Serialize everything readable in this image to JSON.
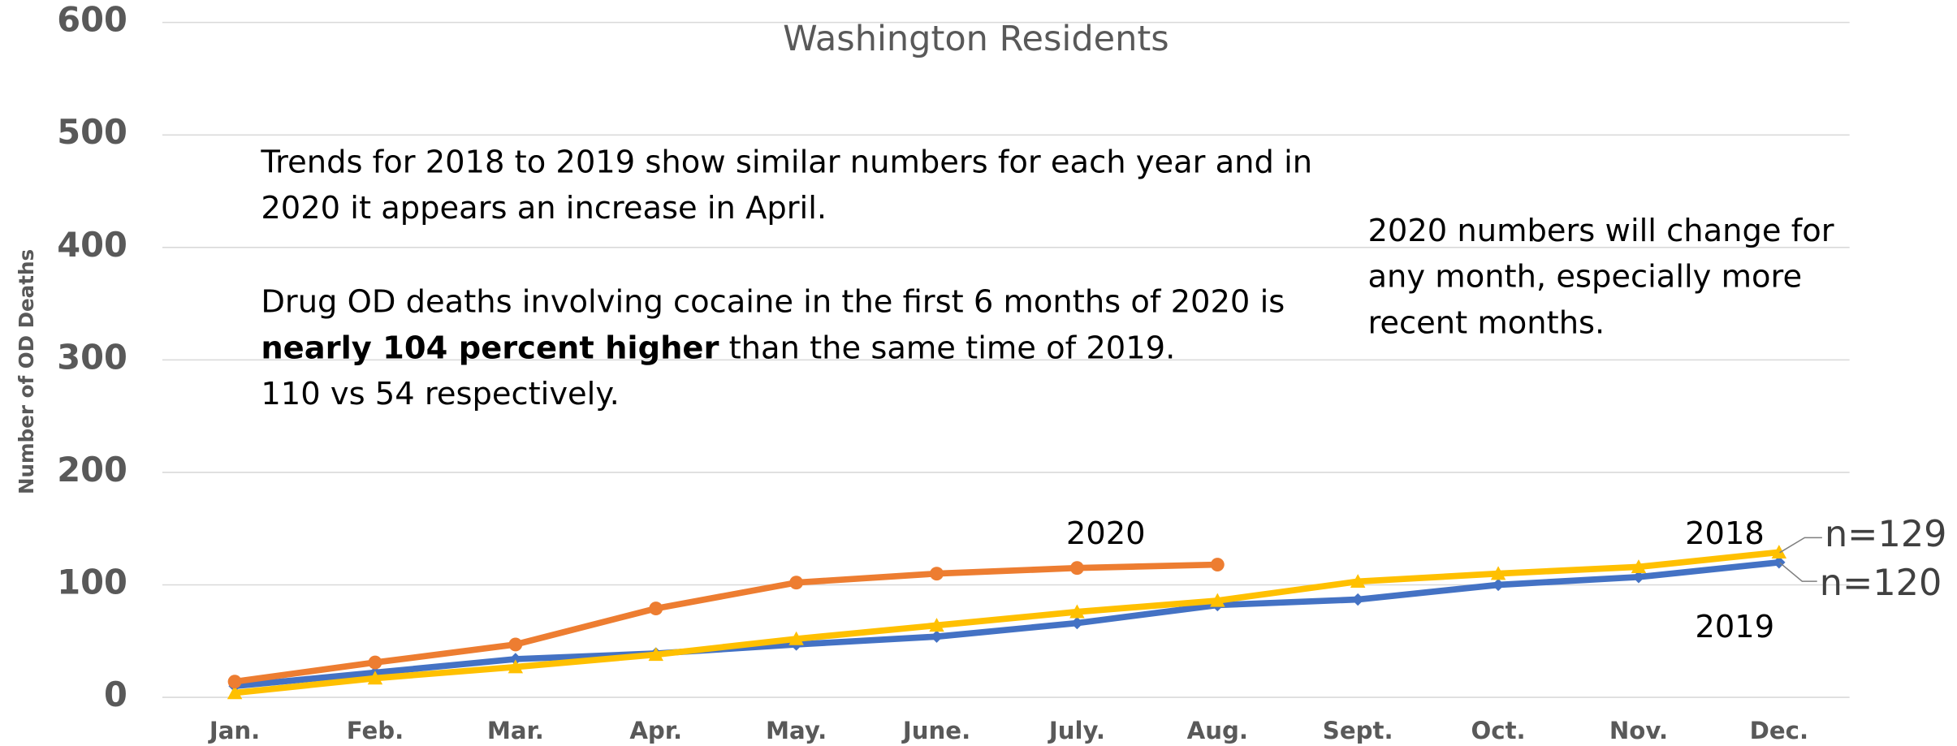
{
  "chart_data": {
    "type": "line",
    "title": "Washington Residents",
    "y_label": "Number of OD Deaths",
    "categories": [
      "Jan.",
      "Feb.",
      "Mar.",
      "Apr.",
      "May.",
      "June.",
      "July.",
      "Aug.",
      "Sept.",
      "Oct.",
      "Nov.",
      "Dec."
    ],
    "series": [
      {
        "name": "2020",
        "color": "#ed7d31",
        "marker": "circle",
        "values": [
          14,
          31,
          47,
          79,
          102,
          110,
          115,
          118,
          null,
          null,
          null,
          null
        ]
      },
      {
        "name": "2019",
        "color": "#4472c4",
        "marker": "diamond",
        "values": [
          10,
          22,
          34,
          39,
          47,
          54,
          66,
          82,
          87,
          100,
          107,
          120
        ]
      },
      {
        "name": "2018",
        "color": "#ffc000",
        "marker": "triangle",
        "values": [
          4,
          17,
          27,
          38,
          52,
          64,
          76,
          86,
          103,
          110,
          116,
          129
        ]
      }
    ],
    "ylim": [
      0,
      600
    ],
    "yticks": [
      0,
      100,
      200,
      300,
      400,
      500,
      600
    ],
    "grid": true,
    "end_labels": [
      "n=129",
      "n=120"
    ],
    "annotations": [
      [
        [
          "Trends for 2018 to 2019 show similar numbers for each year and in"
        ],
        [
          "2020 it appears an increase in April."
        ]
      ],
      [
        [
          "Drug OD deaths involving cocaine in the first 6 months of 2020 is"
        ],
        [
          "nearly 104 percent higher",
          " than the same time of 2019."
        ],
        [
          "110 vs 54 respectively."
        ]
      ],
      [
        [
          "2020 numbers will change for"
        ],
        [
          "any month, especially more"
        ],
        [
          "recent months."
        ]
      ]
    ]
  }
}
